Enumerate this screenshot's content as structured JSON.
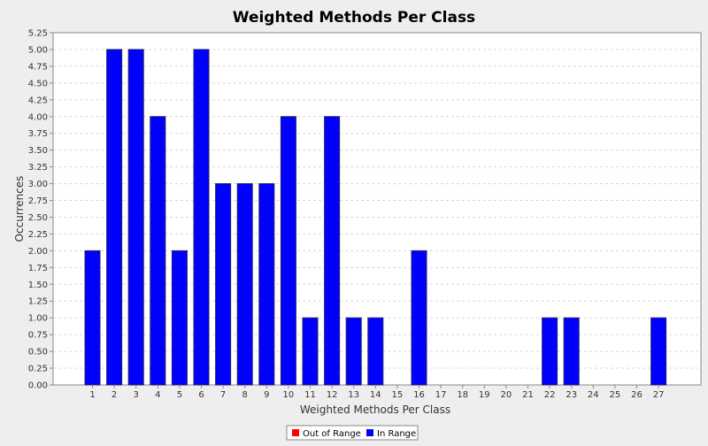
{
  "chart_data": {
    "type": "bar",
    "title": "Weighted Methods Per Class",
    "xlabel": "Weighted Methods Per Class",
    "ylabel": "Occurrences",
    "categories": [
      "1",
      "2",
      "3",
      "4",
      "5",
      "6",
      "7",
      "8",
      "9",
      "10",
      "11",
      "12",
      "13",
      "14",
      "15",
      "16",
      "17",
      "18",
      "19",
      "20",
      "21",
      "22",
      "23",
      "24",
      "25",
      "26",
      "27"
    ],
    "series": [
      {
        "name": "Out of Range",
        "color": "#ff0000",
        "values": [
          0,
          0,
          0,
          0,
          0,
          0,
          0,
          0,
          0,
          0,
          0,
          0,
          0,
          0,
          0,
          0,
          0,
          0,
          0,
          0,
          0,
          0,
          0,
          0,
          0,
          0,
          0
        ]
      },
      {
        "name": "In Range",
        "color": "#0000ff",
        "values": [
          2,
          5,
          5,
          4,
          2,
          5,
          3,
          3,
          3,
          4,
          1,
          4,
          1,
          1,
          0,
          2,
          0,
          0,
          0,
          0,
          0,
          1,
          1,
          0,
          0,
          0,
          1
        ]
      }
    ],
    "ylim": [
      0,
      5.25
    ],
    "yticks": [
      "0.00",
      "0.25",
      "0.50",
      "0.75",
      "1.00",
      "1.25",
      "1.50",
      "1.75",
      "2.00",
      "2.25",
      "2.50",
      "2.75",
      "3.00",
      "3.25",
      "3.50",
      "3.75",
      "4.00",
      "4.25",
      "4.50",
      "4.75",
      "5.00",
      "5.25"
    ],
    "grid": true,
    "legend_position": "bottom"
  }
}
